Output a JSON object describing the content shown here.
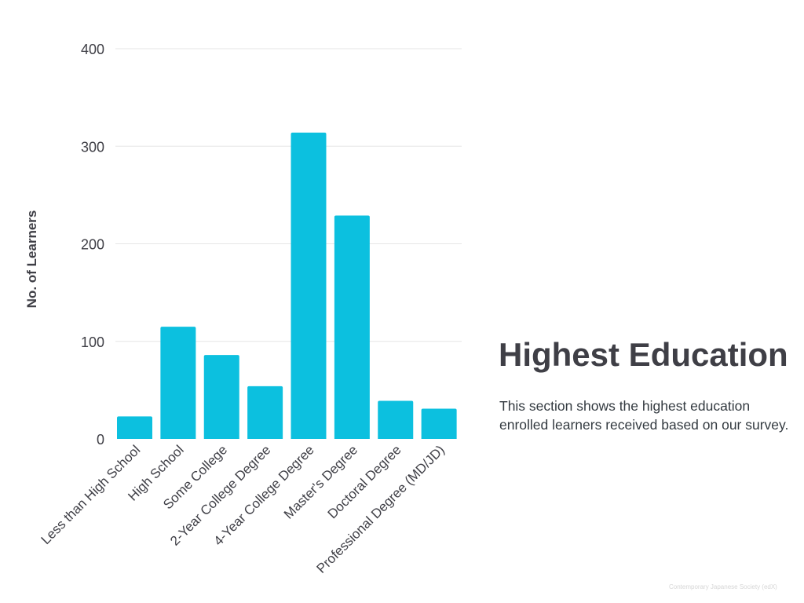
{
  "chart_data": {
    "type": "bar",
    "categories": [
      "Less than High School",
      "High School",
      "Some College",
      "2-Year College Degree",
      "4-Year College Degree",
      "Master's Degree",
      "Doctoral Degree",
      "Professional Degree (MD/JD)"
    ],
    "values": [
      23,
      115,
      86,
      54,
      314,
      229,
      39,
      31
    ],
    "ylabel": "No. of Learners",
    "xlabel": "",
    "ylim": [
      0,
      400
    ],
    "yticks": [
      0,
      100,
      200,
      300,
      400
    ],
    "grid": true,
    "bar_color": "#0cc0df",
    "grid_color": "#e6e6e6",
    "text_color": "#3f3f46"
  },
  "panel": {
    "title": "Highest Education",
    "description": "This section shows the highest education enrolled learners received based on our survey."
  },
  "footer": {
    "credit": "Contemporary Japanese Society (edX)"
  }
}
